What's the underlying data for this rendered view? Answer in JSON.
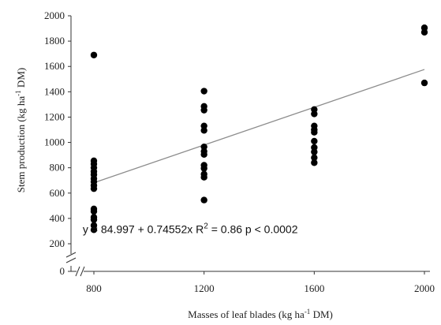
{
  "chart_data": {
    "type": "scatter",
    "xlabel": {
      "pre": "Masses of leaf blades (kg ha",
      "sup": "-1",
      "post": " DM)"
    },
    "ylabel": {
      "pre": "Stem production (kg ha",
      "sup": "-1",
      "post": " DM)"
    },
    "xticks": [
      800,
      1200,
      1600,
      2000
    ],
    "xtick_labels": [
      "800",
      "1200",
      "1600",
      "2000"
    ],
    "yticks": [
      0,
      200,
      400,
      600,
      800,
      1000,
      1200,
      1400,
      1600,
      1800,
      2000
    ],
    "ytick_labels": [
      "0",
      "200",
      "400",
      "600",
      "800",
      "1000",
      "1200",
      "1400",
      "1600",
      "1800",
      "2000"
    ],
    "xlim": [
      800,
      2000
    ],
    "ylim": [
      0,
      2000
    ],
    "axis_breaks": [
      "x",
      "y"
    ],
    "grid": false,
    "points": [
      {
        "x": 800,
        "y": 1690
      },
      {
        "x": 800,
        "y": 855
      },
      {
        "x": 800,
        "y": 830
      },
      {
        "x": 800,
        "y": 800
      },
      {
        "x": 800,
        "y": 770
      },
      {
        "x": 800,
        "y": 745
      },
      {
        "x": 800,
        "y": 715
      },
      {
        "x": 800,
        "y": 690
      },
      {
        "x": 800,
        "y": 660
      },
      {
        "x": 800,
        "y": 635
      },
      {
        "x": 800,
        "y": 475
      },
      {
        "x": 800,
        "y": 455
      },
      {
        "x": 800,
        "y": 410
      },
      {
        "x": 800,
        "y": 390
      },
      {
        "x": 800,
        "y": 345
      },
      {
        "x": 800,
        "y": 310
      },
      {
        "x": 1200,
        "y": 1405
      },
      {
        "x": 1200,
        "y": 1285
      },
      {
        "x": 1200,
        "y": 1255
      },
      {
        "x": 1200,
        "y": 1130
      },
      {
        "x": 1200,
        "y": 1095
      },
      {
        "x": 1200,
        "y": 965
      },
      {
        "x": 1200,
        "y": 930
      },
      {
        "x": 1200,
        "y": 905
      },
      {
        "x": 1200,
        "y": 820
      },
      {
        "x": 1200,
        "y": 795
      },
      {
        "x": 1200,
        "y": 750
      },
      {
        "x": 1200,
        "y": 725
      },
      {
        "x": 1200,
        "y": 545
      },
      {
        "x": 1600,
        "y": 1260
      },
      {
        "x": 1600,
        "y": 1225
      },
      {
        "x": 1600,
        "y": 1130
      },
      {
        "x": 1600,
        "y": 1100
      },
      {
        "x": 1600,
        "y": 1080
      },
      {
        "x": 1600,
        "y": 1010
      },
      {
        "x": 1600,
        "y": 960
      },
      {
        "x": 1600,
        "y": 925
      },
      {
        "x": 1600,
        "y": 880
      },
      {
        "x": 1600,
        "y": 840
      },
      {
        "x": 2000,
        "y": 1905
      },
      {
        "x": 2000,
        "y": 1870
      },
      {
        "x": 2000,
        "y": 1470
      }
    ],
    "trendline": {
      "intercept": 84.997,
      "slope": 0.74552,
      "x_range": [
        800,
        2000
      ]
    },
    "annotation": {
      "pre": "y = 84.997 + 0.74552x R",
      "sup": "2",
      "post": " = 0.86 p < 0.0002",
      "x": 1150,
      "y": 285
    },
    "colors": {
      "points": "#000000",
      "trendline": "#8c8c8c",
      "axis": "#333333"
    }
  }
}
